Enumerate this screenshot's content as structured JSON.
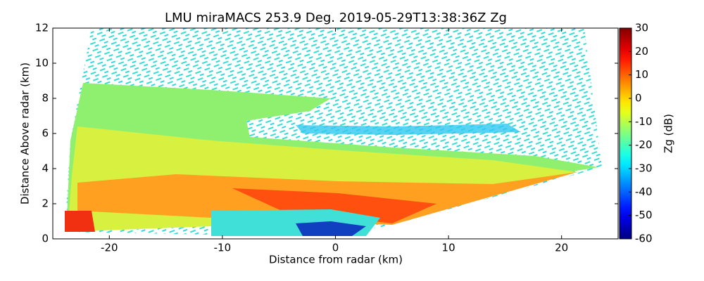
{
  "chart_data": {
    "type": "heatmap",
    "title": "LMU miraMACS 253.9 Deg. 2019-05-29T13:38:36Z  Zg",
    "x_label": "Distance from radar (km)",
    "y_label": "Distance Above radar  (km)",
    "xlim": [
      -25,
      25
    ],
    "xticks": [
      -20,
      -10,
      0,
      10,
      20
    ],
    "ylim": [
      0,
      12
    ],
    "yticks": [
      0,
      2,
      4,
      6,
      8,
      10,
      12
    ],
    "colorbar": {
      "label": "Zg (dB)",
      "colormap": "jet",
      "lim": [
        -60,
        30
      ],
      "ticks": [
        -60,
        -50,
        -40,
        -30,
        -20,
        -10,
        0,
        10,
        20,
        30
      ]
    }
  }
}
